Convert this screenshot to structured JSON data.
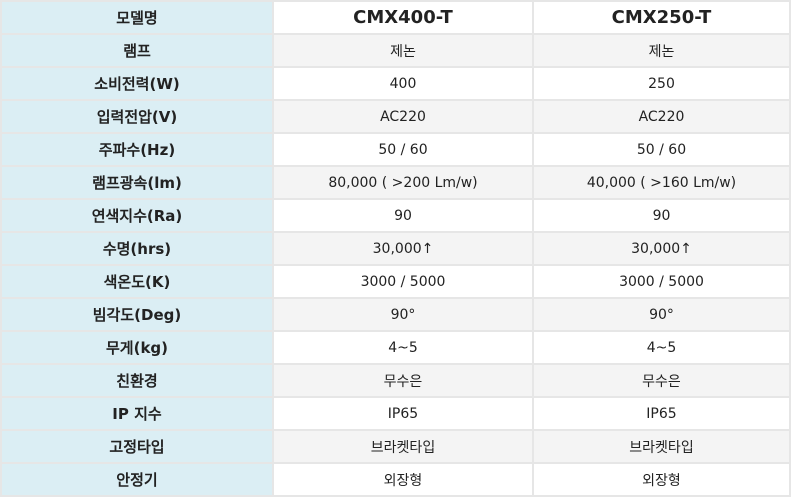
{
  "table": {
    "header": [
      "모델명",
      "CMX400-T",
      "CMX250-T"
    ],
    "rows": [
      [
        "램프",
        "제논",
        "제논"
      ],
      [
        "소비전력(W)",
        "400",
        "250"
      ],
      [
        "입력전압(V)",
        "AC220",
        "AC220"
      ],
      [
        "주파수(Hz)",
        "50 / 60",
        "50 / 60"
      ],
      [
        "램프광속(lm)",
        "80,000 ( >200 Lm/w)",
        "40,000 ( >160 Lm/w)"
      ],
      [
        "연색지수(Ra)",
        "90",
        "90"
      ],
      [
        "수명(hrs)",
        "30,000↑",
        "30,000↑"
      ],
      [
        "색온도(K)",
        "3000 / 5000",
        "3000 / 5000"
      ],
      [
        "빔각도(Deg)",
        "90°",
        "90°"
      ],
      [
        "무게(kg)",
        "4~5",
        "4~5"
      ],
      [
        "친환경",
        "무수은",
        "무수은"
      ],
      [
        "IP 지수",
        "IP65",
        "IP65"
      ],
      [
        "고정타입",
        "브라켓타입",
        "브라켓타입"
      ],
      [
        "안정기",
        "외장형",
        "외장형"
      ]
    ]
  }
}
